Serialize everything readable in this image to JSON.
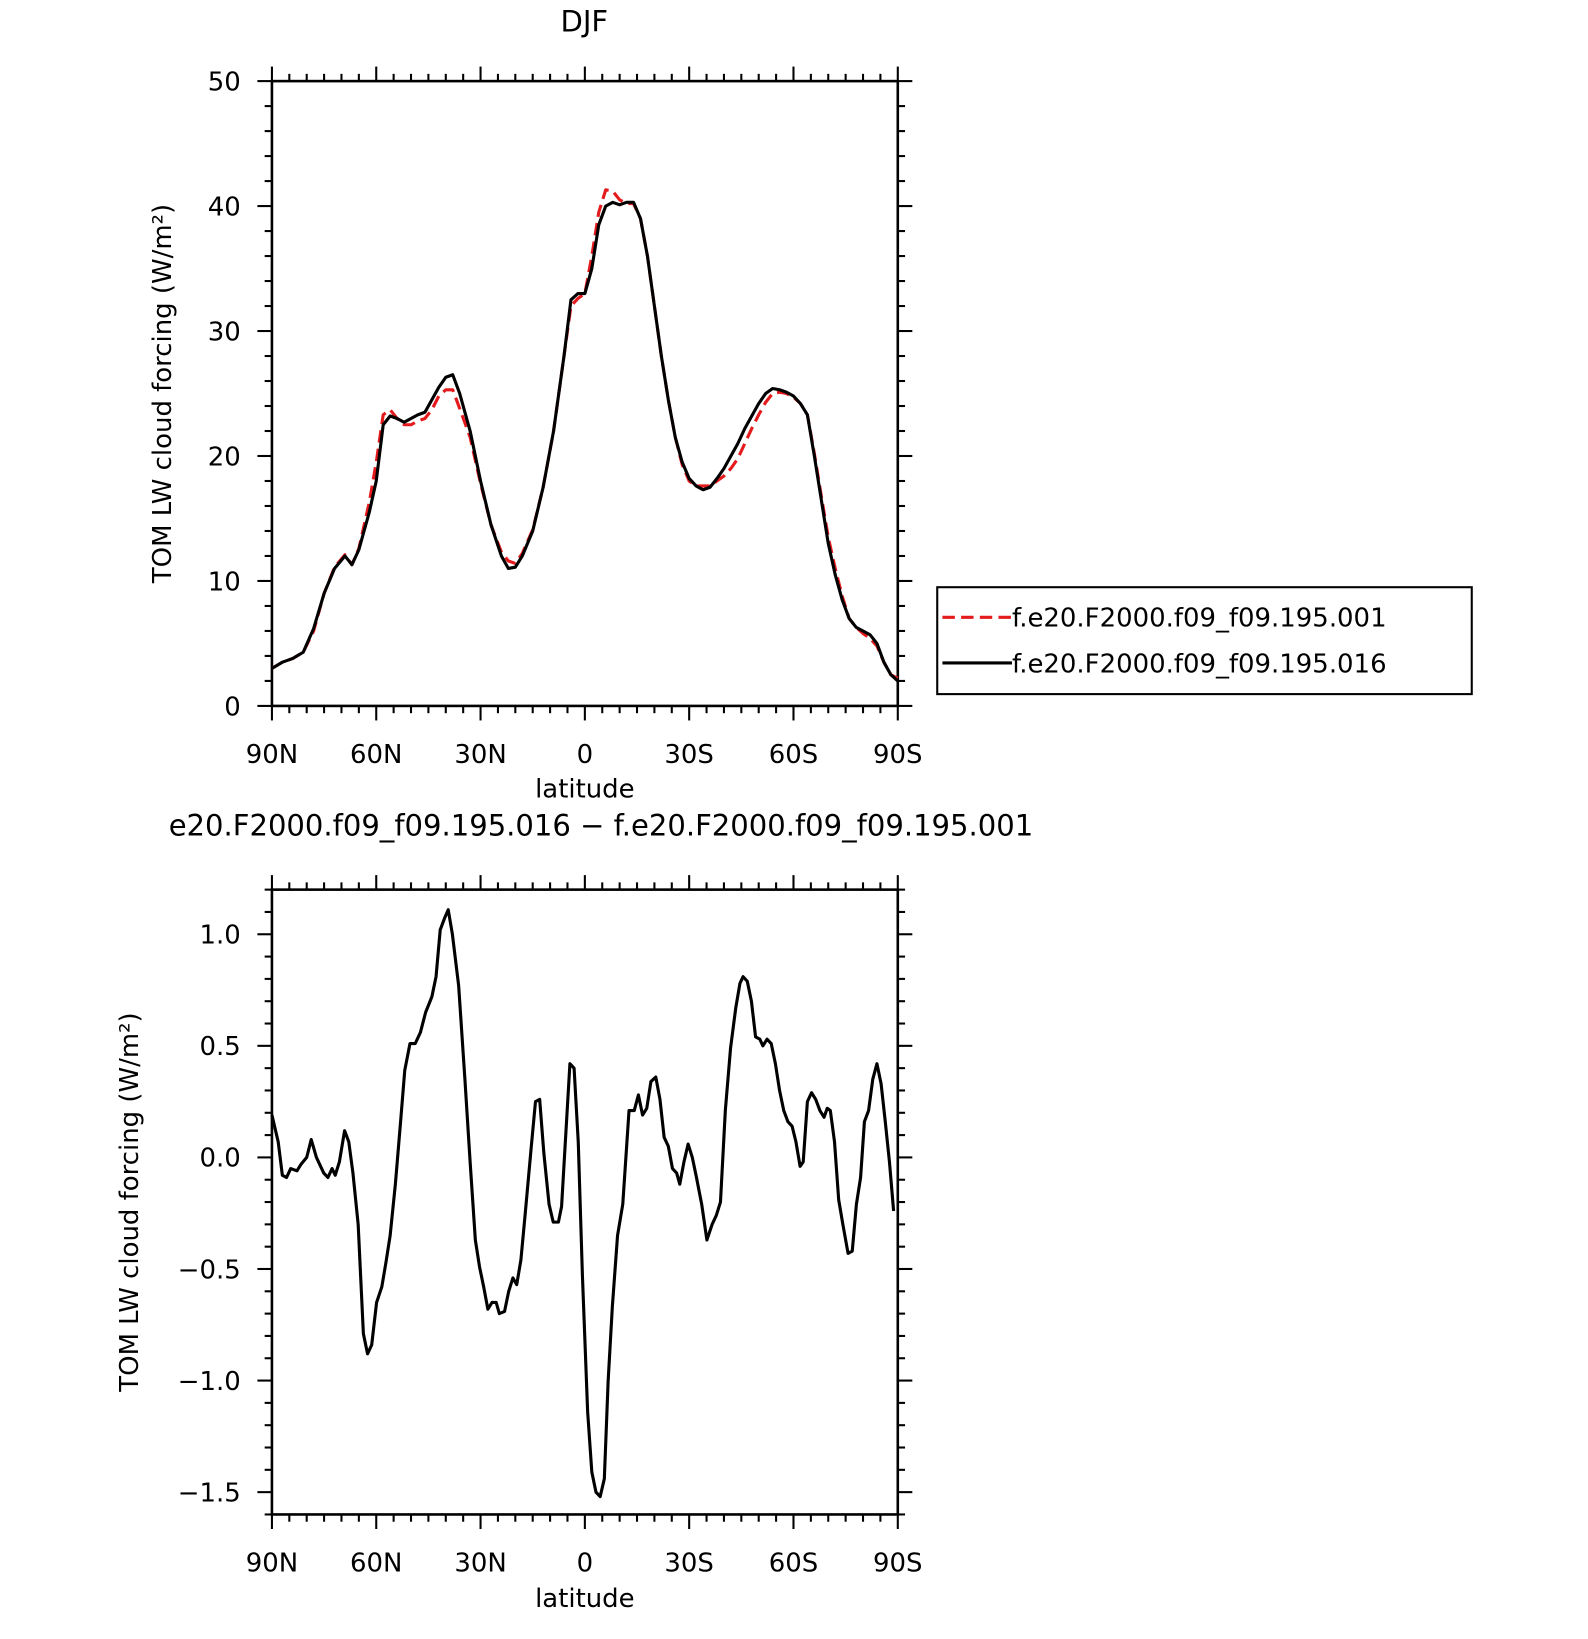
{
  "chart_data": [
    {
      "type": "line",
      "title": "DJF",
      "xlabel": "latitude",
      "ylabel": "TOM LW cloud forcing (W/m²)",
      "xlim": [
        90,
        -90
      ],
      "ylim": [
        0,
        50
      ],
      "xticks": [
        {
          "value": 90,
          "label": "90N"
        },
        {
          "value": 60,
          "label": "60N"
        },
        {
          "value": 30,
          "label": "30N"
        },
        0,
        {
          "value": -30,
          "label": "30S"
        },
        {
          "value": -60,
          "label": "60S"
        },
        {
          "value": -90,
          "label": "90S"
        }
      ],
      "xminorticks": [
        85,
        80,
        75,
        70,
        65,
        55,
        50,
        45,
        40,
        35,
        25,
        20,
        15,
        10,
        5,
        -5,
        -10,
        -15,
        -20,
        -25,
        -35,
        -40,
        -45,
        -50,
        -55,
        -65,
        -70,
        -75,
        -80,
        -85
      ],
      "yticks": [
        0,
        10,
        20,
        30,
        40,
        50
      ],
      "yminorticks": [
        2,
        4,
        6,
        8,
        12,
        14,
        16,
        18,
        22,
        24,
        26,
        28,
        32,
        34,
        36,
        38,
        42,
        44,
        46,
        48
      ],
      "legend": "right",
      "x": [
        90,
        87,
        84,
        81,
        78,
        75,
        72,
        69,
        67,
        65,
        62,
        60,
        58,
        56,
        54,
        52,
        50,
        48,
        46,
        44,
        42,
        40,
        38,
        36,
        33,
        30,
        27,
        24,
        22,
        20,
        18,
        15,
        12,
        9,
        6,
        4,
        2,
        0,
        -2,
        -4,
        -6,
        -8,
        -10,
        -12,
        -14,
        -16,
        -18,
        -20,
        -22,
        -24,
        -26,
        -28,
        -30,
        -32,
        -34,
        -36,
        -38,
        -40,
        -42,
        -44,
        -46,
        -48,
        -50,
        -52,
        -54,
        -56,
        -58,
        -60,
        -62,
        -64,
        -66,
        -68,
        -70,
        -72,
        -74,
        -76,
        -78,
        -80,
        -82,
        -84,
        -86,
        -88,
        -90
      ],
      "series": [
        {
          "name": "f.e20.F2000.f09_f09.195.001",
          "color": "#e41a1c",
          "linestyle": "dashed",
          "values": [
            3.0,
            3.5,
            3.8,
            4.3,
            6.0,
            9.0,
            11.1,
            12.1,
            11.3,
            12.6,
            16.3,
            19.5,
            23.3,
            23.7,
            23.0,
            22.5,
            22.5,
            22.8,
            23.0,
            23.7,
            24.8,
            25.3,
            25.3,
            23.8,
            21.5,
            17.8,
            14.5,
            12.3,
            11.6,
            11.4,
            12.2,
            14.1,
            17.5,
            22.0,
            28.0,
            32.0,
            32.6,
            33.0,
            36.0,
            39.5,
            41.3,
            41.2,
            40.5,
            40.2,
            40.2,
            39.0,
            36.0,
            32.0,
            28.0,
            24.5,
            21.5,
            19.3,
            18.0,
            17.6,
            17.6,
            17.6,
            18.0,
            18.4,
            19.0,
            19.8,
            21.0,
            22.2,
            23.3,
            24.3,
            25.0,
            25.1,
            25.0,
            24.7,
            24.2,
            23.3,
            20.2,
            16.8,
            13.5,
            11.0,
            8.8,
            7.0,
            6.3,
            5.8,
            5.4,
            4.8,
            3.5,
            2.5,
            2.2
          ]
        },
        {
          "name": "f.e20.F2000.f09_f09.195.016",
          "color": "#000000",
          "linestyle": "solid",
          "values": [
            3.0,
            3.5,
            3.8,
            4.3,
            6.2,
            9.0,
            11.0,
            12.0,
            11.3,
            12.5,
            15.5,
            18.0,
            22.5,
            23.2,
            23.0,
            22.7,
            23.0,
            23.3,
            23.5,
            24.5,
            25.5,
            26.3,
            26.5,
            25.0,
            22.0,
            18.0,
            14.5,
            12.0,
            11.0,
            11.1,
            12.0,
            14.0,
            17.5,
            22.0,
            28.0,
            32.5,
            33.0,
            33.0,
            35.0,
            38.5,
            40.0,
            40.3,
            40.1,
            40.3,
            40.3,
            39.0,
            36.0,
            32.0,
            28.0,
            24.5,
            21.5,
            19.5,
            18.2,
            17.6,
            17.3,
            17.5,
            18.2,
            19.0,
            20.0,
            21.0,
            22.2,
            23.2,
            24.2,
            25.0,
            25.4,
            25.3,
            25.1,
            24.8,
            24.2,
            23.3,
            20.0,
            16.5,
            13.0,
            10.5,
            8.5,
            7.0,
            6.3,
            6.0,
            5.7,
            5.0,
            3.5,
            2.5,
            2.0
          ]
        }
      ]
    },
    {
      "type": "line",
      "title": "e20.F2000.f09_f09.195.016 − f.e20.F2000.f09_f09.195.001",
      "xlabel": "latitude",
      "ylabel": "TOM LW cloud forcing (W/m²)",
      "xlim": [
        90,
        -90
      ],
      "ylim": [
        -1.6,
        1.2
      ],
      "xticks": [
        {
          "value": 90,
          "label": "90N"
        },
        {
          "value": 60,
          "label": "60N"
        },
        {
          "value": 30,
          "label": "30N"
        },
        0,
        {
          "value": -30,
          "label": "30S"
        },
        {
          "value": -60,
          "label": "60S"
        },
        {
          "value": -90,
          "label": "90S"
        }
      ],
      "xminorticks": [
        85,
        80,
        75,
        70,
        65,
        55,
        50,
        45,
        40,
        35,
        25,
        20,
        15,
        10,
        5,
        -5,
        -10,
        -15,
        -20,
        -25,
        -35,
        -40,
        -45,
        -50,
        -55,
        -65,
        -70,
        -75,
        -80,
        -85
      ],
      "yticks": [
        {
          "value": -1.5,
          "label": "−1.5"
        },
        {
          "value": -1.0,
          "label": "−1.0"
        },
        {
          "value": -0.5,
          "label": "−0.5"
        },
        {
          "value": 0,
          "label": "0.0"
        },
        0.5,
        {
          "value": 1.0,
          "label": "1.0"
        }
      ],
      "yminorticks": [
        -1.6,
        -1.4,
        -1.3,
        -1.2,
        -1.1,
        -0.9,
        -0.8,
        -0.7,
        -0.6,
        -0.4,
        -0.3,
        -0.2,
        -0.1,
        0.1,
        0.2,
        0.3,
        0.4,
        0.6,
        0.7,
        0.8,
        0.9,
        1.1,
        1.2
      ],
      "color": "#000000",
      "x": [
        90,
        88.2,
        87,
        85.8,
        84.6,
        82.8,
        81.6,
        80,
        78.7,
        77.2,
        75.1,
        73.9,
        72.7,
        71.8,
        70.6,
        69.1,
        67.9,
        66.7,
        65.2,
        63.7,
        62.5,
        61.3,
        59.9,
        58.4,
        57.2,
        56,
        54.5,
        53,
        51.8,
        50.3,
        48.8,
        47.3,
        45.8,
        44,
        42.8,
        41.6,
        40.4,
        39.3,
        38.1,
        36.3,
        34.5,
        33,
        31.5,
        30.3,
        29.1,
        27.9,
        26.7,
        25.5,
        24.6,
        23.1,
        21.9,
        20.7,
        19.6,
        18.4,
        17.2,
        15.4,
        14.2,
        13,
        11.8,
        10.3,
        9.1,
        7.6,
        6.7,
        5.8,
        4.3,
        3.1,
        1.9,
        0.7,
        -0.8,
        -2,
        -3.2,
        -4.4,
        -5.6,
        -6.7,
        -7.9,
        -9.4,
        -10.9,
        -12.7,
        -14.2,
        -15.4,
        -16.6,
        -17.8,
        -19,
        -20.4,
        -21.6,
        -22.8,
        -24,
        -25.2,
        -26.4,
        -27.3,
        -28.5,
        -29.7,
        -30.9,
        -32.1,
        -33.6,
        -35.1,
        -36.6,
        -37.8,
        -39,
        -40.4,
        -41.9,
        -43.4,
        -44.6,
        -45.5,
        -46.7,
        -47.9,
        -49.1,
        -50.3,
        -51.2,
        -52.4,
        -53.6,
        -54.8,
        -56,
        -57.2,
        -58.4,
        -59.6,
        -60.7,
        -61.9,
        -62.8,
        -64,
        -65.2,
        -66.4,
        -67.6,
        -68.8,
        -69.7,
        -70.6,
        -71.8,
        -73,
        -74.2,
        -75.7,
        -76.9,
        -78.1,
        -79.3,
        -80.4,
        -81.6,
        -82.8,
        -84,
        -85.2,
        -86.4,
        -87.6,
        -88.8
      ],
      "values": [
        0.19,
        0.07,
        -0.08,
        -0.09,
        -0.05,
        -0.06,
        -0.03,
        0.0,
        0.08,
        0.0,
        -0.07,
        -0.09,
        -0.05,
        -0.08,
        -0.02,
        0.12,
        0.07,
        -0.07,
        -0.3,
        -0.79,
        -0.88,
        -0.84,
        -0.65,
        -0.58,
        -0.47,
        -0.35,
        -0.12,
        0.16,
        0.39,
        0.51,
        0.51,
        0.56,
        0.65,
        0.72,
        0.81,
        1.02,
        1.07,
        1.11,
        1.0,
        0.77,
        0.35,
        -0.02,
        -0.37,
        -0.49,
        -0.58,
        -0.68,
        -0.65,
        -0.65,
        -0.7,
        -0.69,
        -0.6,
        -0.54,
        -0.57,
        -0.46,
        -0.26,
        0.05,
        0.25,
        0.26,
        0.02,
        -0.21,
        -0.29,
        -0.29,
        -0.22,
        0.02,
        0.42,
        0.4,
        0.07,
        -0.53,
        -1.14,
        -1.41,
        -1.5,
        -1.52,
        -1.44,
        -1.0,
        -0.67,
        -0.35,
        -0.21,
        0.21,
        0.21,
        0.28,
        0.19,
        0.22,
        0.34,
        0.36,
        0.26,
        0.09,
        0.05,
        -0.05,
        -0.07,
        -0.12,
        -0.02,
        0.06,
        0.0,
        -0.09,
        -0.21,
        -0.37,
        -0.3,
        -0.26,
        -0.2,
        0.21,
        0.49,
        0.67,
        0.78,
        0.81,
        0.79,
        0.7,
        0.54,
        0.53,
        0.5,
        0.53,
        0.51,
        0.42,
        0.3,
        0.21,
        0.16,
        0.14,
        0.07,
        -0.04,
        -0.02,
        0.25,
        0.29,
        0.26,
        0.21,
        0.18,
        0.22,
        0.21,
        0.07,
        -0.19,
        -0.3,
        -0.43,
        -0.42,
        -0.21,
        -0.09,
        0.16,
        0.21,
        0.35,
        0.42,
        0.33,
        0.16,
        -0.02,
        -0.24
      ]
    }
  ]
}
